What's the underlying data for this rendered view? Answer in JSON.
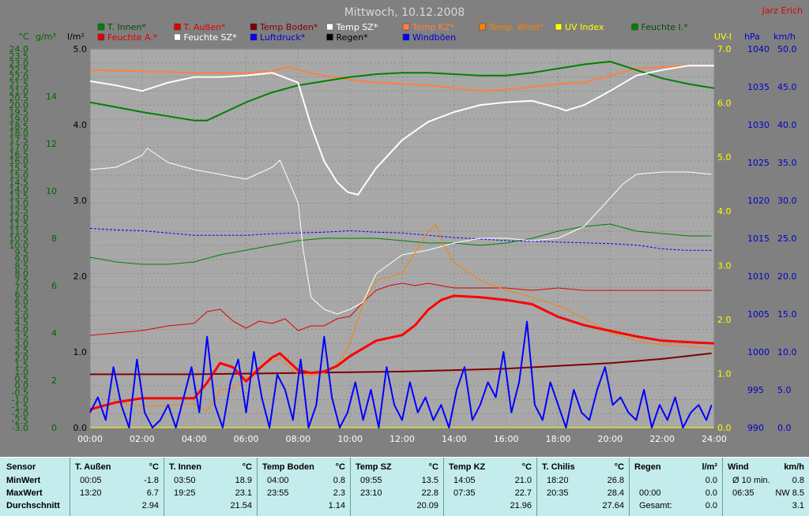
{
  "title": "Mittwoch, 10.12.2008",
  "author": "Jarz Erich",
  "legend": [
    {
      "label": "T. Innen*",
      "color": "#008000"
    },
    {
      "label": "T. Außen*",
      "color": "#e00000"
    },
    {
      "label": "Temp Boden*",
      "color": "#800000"
    },
    {
      "label": "Temp SZ*",
      "color": "#ffffff"
    },
    {
      "label": "Temp KZ*",
      "color": "#ff8040"
    },
    {
      "label": "Temp. Wind*",
      "color": "#ff8000"
    },
    {
      "label": "UV Index",
      "color": "#ffff00"
    },
    {
      "label": "Feuchte I.*",
      "color": "#008000"
    },
    {
      "label": "Feuchte A.*",
      "color": "#e00000"
    },
    {
      "label": "Feuchte SZ*",
      "color": "#ffffff"
    },
    {
      "label": "Luftdruck*",
      "color": "#0000ff"
    },
    {
      "label": "Regen*",
      "color": "#000000"
    },
    {
      "label": "Windböen",
      "color": "#0000ff"
    }
  ],
  "chart_data": {
    "type": "line",
    "x_ticks": [
      "00:00",
      "02:00",
      "04:00",
      "06:00",
      "08:00",
      "10:00",
      "12:00",
      "14:00",
      "16:00",
      "18:00",
      "20:00",
      "22:00",
      "24:00"
    ],
    "axes": {
      "temp": {
        "unit": "°C",
        "range": [
          -3,
          24
        ],
        "ticks": [
          "-3.0",
          "-2.5",
          "-2.0",
          "-1.5",
          "-1.0",
          "-0.5",
          "0.0",
          "0.5",
          "1.0",
          "1.5",
          "2.0",
          "2.5",
          "3.0",
          "3.5",
          "4.0",
          "4.5",
          "5.0",
          "5.5",
          "6.0",
          "6.5",
          "7.0",
          "7.5",
          "8.0",
          "8.5",
          "9.0",
          "9.5",
          "10.0",
          "10.5",
          "11.0",
          "11.5",
          "12.0",
          "12.5",
          "13.0",
          "13.5",
          "14.0",
          "14.5",
          "15.0",
          "15.5",
          "16.0",
          "16.5",
          "17.0",
          "17.5",
          "18.0",
          "18.5",
          "19.0",
          "19.5",
          "20.0",
          "20.5",
          "21.0",
          "21.5",
          "22.0",
          "22.5",
          "23.0",
          "23.5",
          "24.0"
        ]
      },
      "abs_hum": {
        "unit": "g/m³",
        "range": [
          0,
          16
        ],
        "ticks": [
          "0",
          "2",
          "4",
          "6",
          "8",
          "10",
          "12",
          "14"
        ]
      },
      "rain": {
        "unit": "l/m²",
        "range": [
          0,
          5
        ],
        "ticks": [
          "0.0",
          "1.0",
          "2.0",
          "3.0",
          "4.0",
          "5.0"
        ]
      },
      "uv": {
        "unit": "UV-I",
        "range": [
          0,
          7
        ],
        "ticks": [
          "0.0",
          "1.0",
          "2.0",
          "3.0",
          "4.0",
          "5.0",
          "6.0",
          "7.0"
        ]
      },
      "pressure": {
        "unit": "hPa",
        "range": [
          990,
          1040
        ],
        "ticks": [
          "990",
          "995",
          "1000",
          "1005",
          "1010",
          "1015",
          "1020",
          "1025",
          "1030",
          "1035",
          "1040"
        ]
      },
      "wind": {
        "unit": "km/h",
        "range": [
          0,
          50
        ],
        "ticks": [
          "0.0",
          "5.0",
          "10.0",
          "15.0",
          "20.0",
          "25.0",
          "30.0",
          "35.0",
          "40.0",
          "45.0",
          "50.0"
        ]
      }
    },
    "series": [
      {
        "name": "T. Innen*",
        "axis": "temp",
        "color": "#008000",
        "width": 2,
        "x": [
          0,
          2,
          3,
          4,
          4.5,
          6,
          7,
          8,
          9,
          10,
          11,
          12,
          13,
          14,
          15,
          16,
          17,
          18,
          19,
          19.5,
          20,
          21,
          22,
          23,
          24
        ],
        "y": [
          20.2,
          19.5,
          19.2,
          18.9,
          18.9,
          20.2,
          20.9,
          21.4,
          21.7,
          22.0,
          22.2,
          22.3,
          22.3,
          22.2,
          22.1,
          22.1,
          22.3,
          22.6,
          22.9,
          23.0,
          23.1,
          22.5,
          21.9,
          21.5,
          21.2
        ]
      },
      {
        "name": "Temp KZ*",
        "axis": "temp",
        "color": "#ff8040",
        "width": 2,
        "x": [
          0,
          2,
          4,
          6,
          7,
          7.6,
          8,
          9,
          10,
          11,
          12,
          13,
          14,
          15,
          16,
          17,
          18,
          19,
          20,
          21,
          22,
          23,
          24
        ],
        "y": [
          22.5,
          22.4,
          22.3,
          22.3,
          22.4,
          22.7,
          22.5,
          22.1,
          21.8,
          21.6,
          21.5,
          21.4,
          21.2,
          21.0,
          21.1,
          21.3,
          21.5,
          21.6,
          22.1,
          22.6,
          22.7,
          22.8,
          22.8
        ]
      },
      {
        "name": "Temp SZ*",
        "axis": "temp",
        "color": "#ffffff",
        "width": 2,
        "x": [
          0,
          1,
          2,
          3,
          4,
          5,
          6,
          7,
          8,
          8.5,
          9,
          9.5,
          9.9,
          10.3,
          11,
          12,
          13,
          14,
          15,
          16,
          17,
          18,
          18.3,
          19,
          20,
          21,
          22,
          23,
          24
        ],
        "y": [
          21.7,
          21.4,
          21.0,
          21.6,
          22.0,
          22.0,
          22.1,
          22.3,
          21.6,
          18.5,
          16.0,
          14.5,
          13.8,
          13.6,
          15.5,
          17.5,
          18.8,
          19.5,
          20.0,
          20.2,
          20.3,
          19.8,
          19.6,
          20.0,
          21.0,
          22.1,
          22.5,
          22.8,
          22.8
        ]
      },
      {
        "name": "T. Außen*",
        "axis": "temp",
        "color": "#ff0000",
        "width": 3,
        "x": [
          0,
          1,
          2,
          3,
          4,
          4.5,
          5,
          5.5,
          6,
          6.5,
          7,
          7.3,
          8,
          8.5,
          9,
          9.5,
          10,
          11,
          12,
          12.5,
          13,
          13.5,
          14,
          15,
          16,
          17,
          18,
          19,
          20,
          21,
          22,
          23,
          24
        ],
        "y": [
          -1.7,
          -1.2,
          -0.9,
          -0.9,
          -0.9,
          0.2,
          1.6,
          1.3,
          0.3,
          1.2,
          2.0,
          2.3,
          1.1,
          0.9,
          1.0,
          1.4,
          2.1,
          3.2,
          3.6,
          4.3,
          5.4,
          6.1,
          6.4,
          6.3,
          6.1,
          5.8,
          4.9,
          4.3,
          3.9,
          3.5,
          3.2,
          3.1,
          3.0
        ]
      },
      {
        "name": "Temp. Wind*",
        "axis": "temp",
        "color": "#ff8000",
        "width": 1,
        "x": [
          0,
          1,
          2,
          3,
          4,
          4.5,
          5,
          5.5,
          6,
          6.5,
          7,
          7.3,
          8,
          8.5,
          9,
          9.5,
          10,
          10.5,
          11,
          12,
          12.5,
          13,
          13.3,
          13.6,
          14,
          15,
          16,
          17,
          18,
          19,
          20,
          21,
          22,
          23,
          24
        ],
        "y": [
          -1.8,
          -1.2,
          -1.5,
          -1.4,
          -1.3,
          -1.8,
          -0.3,
          -0.2,
          0.5,
          1.3,
          1.8,
          1.9,
          0.8,
          0.7,
          0.9,
          1.5,
          3.0,
          5.8,
          7.5,
          8.0,
          9.5,
          11.0,
          11.5,
          10.0,
          8.8,
          7.5,
          6.8,
          6.3,
          5.7,
          4.8,
          3.8,
          3.2,
          2.9,
          2.8,
          2.6
        ]
      },
      {
        "name": "Temp Boden*",
        "axis": "temp",
        "color": "#800000",
        "width": 2,
        "x": [
          0,
          4,
          8,
          12,
          14,
          16,
          18,
          20,
          22,
          23.9
        ],
        "y": [
          0.8,
          0.8,
          0.9,
          1.0,
          1.1,
          1.2,
          1.4,
          1.6,
          1.9,
          2.3
        ]
      },
      {
        "name": "Feuchte SZ*",
        "axis": "abs_hum",
        "color": "#ffffff",
        "width": 1,
        "x": [
          0,
          1,
          2,
          2.2,
          3,
          4,
          5,
          6,
          7,
          7.3,
          8,
          8.2,
          8.5,
          9,
          9.5,
          10,
          10.5,
          11,
          12,
          13,
          14,
          15,
          16,
          17,
          18,
          19,
          20,
          20.5,
          21,
          22,
          23,
          23.9
        ],
        "y": [
          10.9,
          11.0,
          11.5,
          11.8,
          11.2,
          10.9,
          10.7,
          10.5,
          11.0,
          11.3,
          9.5,
          7.5,
          5.5,
          5.0,
          4.8,
          5.0,
          5.3,
          6.5,
          7.3,
          7.5,
          7.8,
          8.0,
          8.0,
          7.9,
          8.0,
          8.5,
          9.7,
          10.3,
          10.7,
          10.8,
          10.8,
          10.7
        ]
      },
      {
        "name": "Feuchte I.*",
        "axis": "abs_hum",
        "color": "#008000",
        "width": 1,
        "x": [
          0,
          1,
          2,
          3,
          4,
          5,
          6,
          7,
          8,
          9,
          10,
          11,
          12,
          13,
          14,
          15,
          16,
          17,
          18,
          19,
          20,
          21,
          22,
          23,
          23.9
        ],
        "y": [
          7.2,
          7.0,
          6.9,
          6.9,
          7.0,
          7.3,
          7.5,
          7.7,
          7.9,
          8.0,
          8.0,
          8.0,
          7.9,
          7.8,
          7.8,
          7.7,
          7.8,
          8.0,
          8.3,
          8.5,
          8.6,
          8.3,
          8.2,
          8.1,
          8.1
        ]
      },
      {
        "name": "Feuchte A.*",
        "axis": "abs_hum",
        "color": "#e00000",
        "width": 1,
        "x": [
          0,
          1,
          2,
          3,
          4,
          4.5,
          5,
          5.5,
          6,
          6.5,
          7,
          7.5,
          8,
          8.5,
          9,
          9.5,
          10,
          10.5,
          11,
          11.5,
          12,
          12.5,
          13,
          13.5,
          14,
          15,
          16,
          17,
          18,
          19,
          20,
          21,
          22,
          23,
          23.9
        ],
        "y": [
          3.9,
          4.0,
          4.1,
          4.3,
          4.4,
          4.9,
          5.0,
          4.5,
          4.2,
          4.5,
          4.4,
          4.6,
          4.1,
          4.3,
          4.3,
          4.6,
          4.7,
          5.3,
          5.8,
          6.0,
          6.1,
          6.0,
          6.1,
          6.0,
          5.9,
          5.9,
          5.9,
          5.8,
          5.9,
          5.8,
          5.8,
          5.8,
          5.8,
          5.8,
          5.8
        ]
      },
      {
        "name": "Luftdruck*",
        "axis": "pressure",
        "color": "#0000ff",
        "width": 1,
        "dashed": true,
        "x": [
          0,
          1,
          2,
          3,
          4,
          5,
          6,
          7,
          8,
          9,
          10,
          11,
          12,
          13,
          14,
          15,
          16,
          17,
          18,
          19,
          20,
          21,
          22,
          23,
          23.9
        ],
        "y": [
          1016.3,
          1016.1,
          1016.0,
          1015.7,
          1015.4,
          1015.4,
          1015.4,
          1015.6,
          1015.7,
          1015.8,
          1016.0,
          1015.8,
          1015.7,
          1015.4,
          1015.1,
          1014.9,
          1014.7,
          1014.6,
          1014.5,
          1014.4,
          1014.3,
          1014.1,
          1013.6,
          1013.4,
          1013.4
        ]
      },
      {
        "name": "Regen*",
        "axis": "rain",
        "color": "#000000",
        "width": 1,
        "x": [
          0,
          24
        ],
        "y": [
          0,
          0
        ]
      },
      {
        "name": "UV Index",
        "axis": "uv",
        "color": "#ffff00",
        "width": 1,
        "x": [
          0,
          24
        ],
        "y": [
          0,
          0
        ]
      },
      {
        "name": "Windböen",
        "axis": "wind",
        "color": "#0000ff",
        "width": 2,
        "x": [
          0,
          0.3,
          0.6,
          0.9,
          1.2,
          1.5,
          1.8,
          2.1,
          2.4,
          2.7,
          3.0,
          3.3,
          3.6,
          3.9,
          4.2,
          4.5,
          4.8,
          5.1,
          5.4,
          5.7,
          6.0,
          6.3,
          6.6,
          6.9,
          7.2,
          7.5,
          7.8,
          8.1,
          8.4,
          8.7,
          9.0,
          9.3,
          9.6,
          9.9,
          10.2,
          10.5,
          10.8,
          11.1,
          11.4,
          11.7,
          12.0,
          12.3,
          12.6,
          12.9,
          13.2,
          13.5,
          13.8,
          14.1,
          14.4,
          14.7,
          15.0,
          15.3,
          15.6,
          15.9,
          16.2,
          16.5,
          16.8,
          17.1,
          17.4,
          17.7,
          18.0,
          18.3,
          18.6,
          18.9,
          19.2,
          19.5,
          19.8,
          20.1,
          20.4,
          20.7,
          21.0,
          21.3,
          21.6,
          21.9,
          22.2,
          22.5,
          22.8,
          23.1,
          23.4,
          23.7,
          23.9
        ],
        "y": [
          2,
          4,
          1,
          8,
          3,
          0,
          9,
          2,
          0,
          1,
          3,
          0,
          4,
          8,
          2,
          12,
          3,
          0,
          6,
          9,
          2,
          10,
          4,
          0,
          7,
          5,
          1,
          9,
          0,
          3,
          12,
          4,
          0,
          2,
          6,
          1,
          5,
          0,
          8,
          3,
          1,
          6,
          2,
          4,
          1,
          3,
          0,
          5,
          8,
          1,
          3,
          6,
          4,
          10,
          2,
          6,
          14,
          3,
          1,
          6,
          3,
          0,
          5,
          2,
          1,
          5,
          8,
          3,
          4,
          2,
          1,
          5,
          0,
          3,
          1,
          4,
          0,
          2,
          3,
          1,
          3
        ]
      }
    ]
  },
  "table": {
    "sensor_label": "Sensor",
    "row_labels": [
      "MinWert",
      "MaxWert",
      "Durchschnitt"
    ],
    "columns": [
      {
        "title": "T. Außen",
        "unit": "°C",
        "min_time": "00:05",
        "min": "-1.8",
        "max_time": "13:20",
        "max": "6.7",
        "avg": "2.94"
      },
      {
        "title": "T. Innen",
        "unit": "°C",
        "min_time": "03:50",
        "min": "18.9",
        "max_time": "19:25",
        "max": "23.1",
        "avg": "21.54"
      },
      {
        "title": "Temp Boden",
        "unit": "°C",
        "min_time": "04:00",
        "min": "0.8",
        "max_time": "23:55",
        "max": "2.3",
        "avg": "1.14"
      },
      {
        "title": "Temp SZ",
        "unit": "°C",
        "min_time": "09:55",
        "min": "13.5",
        "max_time": "23:10",
        "max": "22.8",
        "avg": "20.09"
      },
      {
        "title": "Temp KZ",
        "unit": "°C",
        "min_time": "14:05",
        "min": "21.0",
        "max_time": "07:35",
        "max": "22.7",
        "avg": "21.96"
      },
      {
        "title": "T. Chilis",
        "unit": "°C",
        "min_time": "18:20",
        "min": "26.8",
        "max_time": "20:35",
        "max": "28.4",
        "avg": "27.64"
      },
      {
        "title": "Regen",
        "unit": "l/m²",
        "min_time": "",
        "min": "0.0",
        "max_time": "00:00",
        "max": "0.0",
        "avg_label": "Gesamt:",
        "avg": "0.0"
      },
      {
        "title": "Wind",
        "unit": "km/h",
        "min_time": "Ø 10 min.",
        "min": "0.8",
        "max_time": "06:35",
        "max": "NW 8.5",
        "avg": "3.1"
      }
    ]
  }
}
